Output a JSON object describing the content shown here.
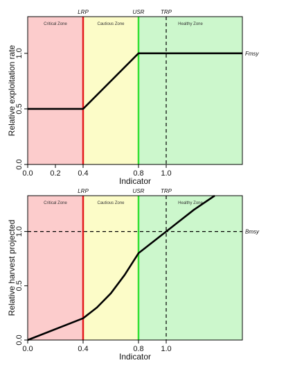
{
  "colors": {
    "critical_zone": "#fccccc",
    "cautious_zone": "#fcfcc8",
    "healthy_zone": "#ccf7cc",
    "lrp_line": "#e41a1c",
    "usr_line": "#33e033",
    "curve": "#000000"
  },
  "chart_data": [
    {
      "type": "line",
      "xlabel": "Indicator",
      "ylabel": "Relative exploitation rate",
      "xlim": [
        0,
        1.55
      ],
      "ylim": [
        0,
        1.33
      ],
      "x_ticks": [
        0.0,
        0.2,
        0.4,
        0.8,
        1.0
      ],
      "x_tick_labels": [
        "0.0",
        "0.2",
        "0.4",
        "0.8",
        "1.0"
      ],
      "y_ticks": [
        0.0,
        0.5,
        1.0
      ],
      "y_tick_labels": [
        "0.0",
        "0.5",
        "1.0"
      ],
      "zones": [
        {
          "label": "Critical Zone",
          "from": 0.0,
          "to": 0.4
        },
        {
          "label": "Cautious Zone",
          "from": 0.4,
          "to": 0.8
        },
        {
          "label": "Healthy Zone",
          "from": 0.8,
          "to": 1.55
        }
      ],
      "vertical_refs": [
        {
          "label": "LRP",
          "x": 0.4,
          "style": "solid",
          "color_key": "lrp_line"
        },
        {
          "label": "USR",
          "x": 0.8,
          "style": "solid",
          "color_key": "usr_line"
        },
        {
          "label": "TRP",
          "x": 1.0,
          "style": "dashed",
          "color_key": "curve"
        }
      ],
      "horizontal_refs": [],
      "right_label": {
        "text": "Fmsy",
        "y": 1.0
      },
      "series": [
        {
          "x": [
            0.0,
            0.4,
            0.8,
            1.55
          ],
          "y": [
            0.5,
            0.5,
            1.0,
            1.0
          ]
        }
      ]
    },
    {
      "type": "line",
      "xlabel": "Indicator",
      "ylabel": "Relative harvest projected",
      "xlim": [
        0,
        1.55
      ],
      "ylim": [
        0,
        1.33
      ],
      "x_ticks": [
        0.0,
        0.4,
        0.8,
        1.0
      ],
      "x_tick_labels": [
        "0.0",
        "0.4",
        "0.8",
        "1.0"
      ],
      "y_ticks": [
        0.0,
        0.5,
        1.0
      ],
      "y_tick_labels": [
        "0.0",
        "0.5",
        "1.0"
      ],
      "zones": [
        {
          "label": "Critical Zone",
          "from": 0.0,
          "to": 0.4
        },
        {
          "label": "Cautious Zone",
          "from": 0.4,
          "to": 0.8
        },
        {
          "label": "Healthy Zone",
          "from": 0.8,
          "to": 1.55
        }
      ],
      "vertical_refs": [
        {
          "label": "LRP",
          "x": 0.4,
          "style": "solid",
          "color_key": "lrp_line"
        },
        {
          "label": "USR",
          "x": 0.8,
          "style": "solid",
          "color_key": "usr_line"
        },
        {
          "label": "TRP",
          "x": 1.0,
          "style": "dashed",
          "color_key": "curve"
        }
      ],
      "horizontal_refs": [
        {
          "y": 1.0,
          "style": "dashed"
        }
      ],
      "right_label": {
        "text": "Bmsy",
        "y": 1.0
      },
      "series": [
        {
          "x": [
            0.0,
            0.4,
            0.5,
            0.6,
            0.7,
            0.8,
            1.0,
            1.2,
            1.35
          ],
          "y": [
            0.0,
            0.2,
            0.3,
            0.43,
            0.6,
            0.8,
            1.0,
            1.2,
            1.33
          ]
        }
      ]
    }
  ]
}
